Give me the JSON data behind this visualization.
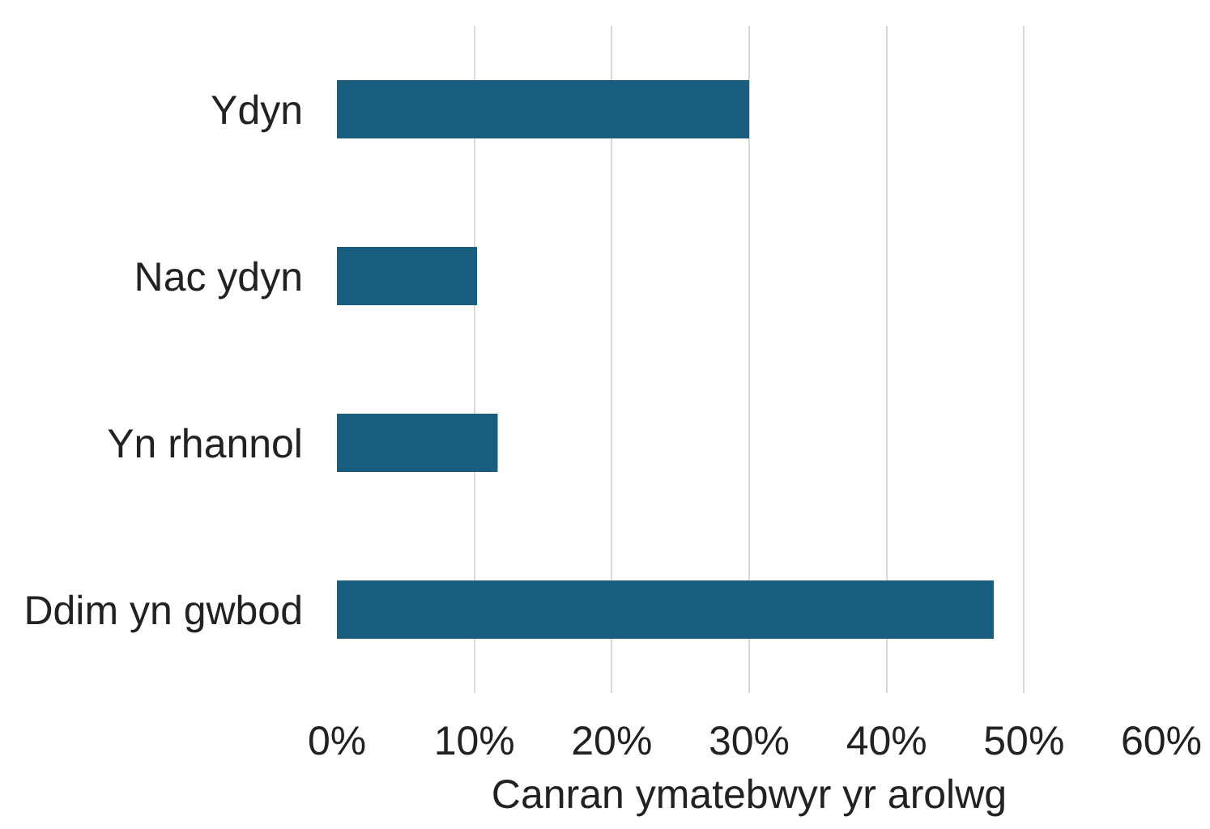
{
  "chart_data": {
    "type": "bar",
    "orientation": "horizontal",
    "categories": [
      "Ydyn",
      "Nac ydyn",
      "Yn rhannol",
      "Ddim yn gwbod"
    ],
    "values": [
      30,
      10.2,
      11.7,
      47.8
    ],
    "color": "#195e7e",
    "xlabel": "Canran ymatebwyr yr arolwg",
    "xlim": [
      0,
      60
    ],
    "xticks": [
      {
        "value": 0,
        "label": "0%"
      },
      {
        "value": 10,
        "label": "10%"
      },
      {
        "value": 20,
        "label": "20%"
      },
      {
        "value": 30,
        "label": "30%"
      },
      {
        "value": 40,
        "label": "40%"
      },
      {
        "value": 50,
        "label": "50%"
      },
      {
        "value": 60,
        "label": "60%"
      }
    ],
    "grid": "x"
  }
}
